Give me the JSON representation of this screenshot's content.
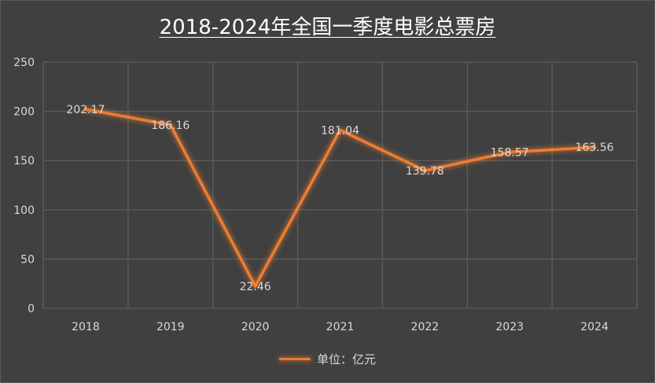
{
  "chart_data": {
    "type": "line",
    "title": "2018-2024年全国一季度电影总票房",
    "categories": [
      "2018",
      "2019",
      "2020",
      "2021",
      "2022",
      "2023",
      "2024"
    ],
    "series": [
      {
        "name": "单位：亿元",
        "values": [
          202.17,
          186.16,
          22.46,
          181.04,
          139.78,
          158.57,
          163.56
        ],
        "data_labels": [
          "202.17",
          "186.16",
          "22.46",
          "181.04",
          "139.78",
          "158.57",
          "163.56"
        ],
        "color": "#ed7d31"
      }
    ],
    "ylim": [
      0,
      250
    ],
    "yticks": [
      0,
      50,
      100,
      150,
      200,
      250
    ],
    "xlabel": "",
    "ylabel": "",
    "grid": true,
    "legend_position": "bottom",
    "background_color": "#404040",
    "gridline_color": "#595959"
  }
}
